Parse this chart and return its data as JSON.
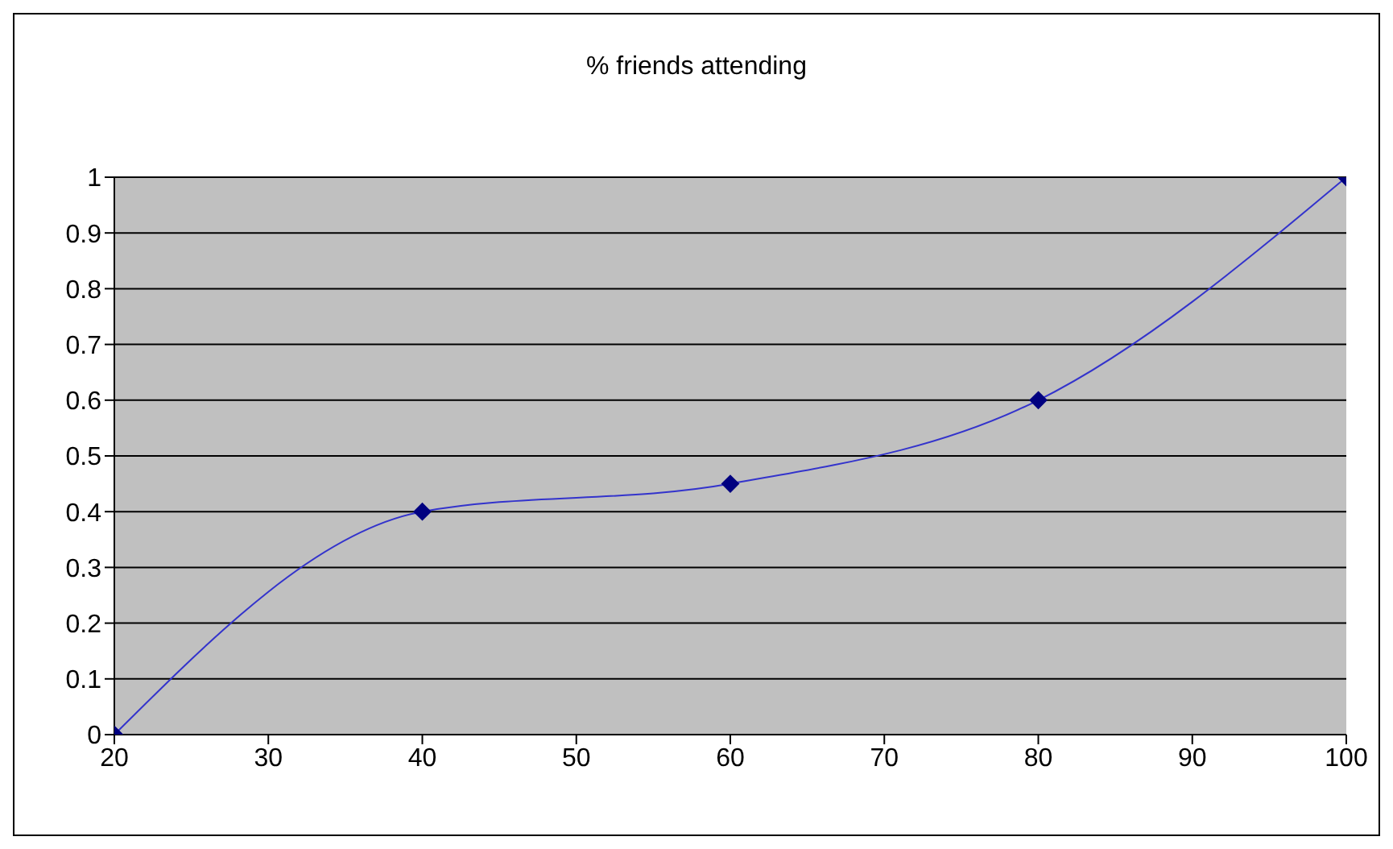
{
  "chart_data": {
    "type": "line",
    "title": "% friends attending",
    "x": [
      20,
      40,
      60,
      80,
      100
    ],
    "series": [
      {
        "color": "#3333cc",
        "values": [
          0,
          0.4,
          0.45,
          0.6,
          1
        ]
      }
    ],
    "xlim": [
      20,
      100
    ],
    "xticks": [
      20,
      30,
      40,
      50,
      60,
      70,
      80,
      90,
      100
    ],
    "ylim": [
      0,
      1
    ],
    "yticks": [
      0,
      0.1,
      0.2,
      0.3,
      0.4,
      0.5,
      0.6,
      0.7,
      0.8,
      0.9,
      1
    ],
    "grid": "y",
    "marker": "diamond",
    "legend": false
  }
}
